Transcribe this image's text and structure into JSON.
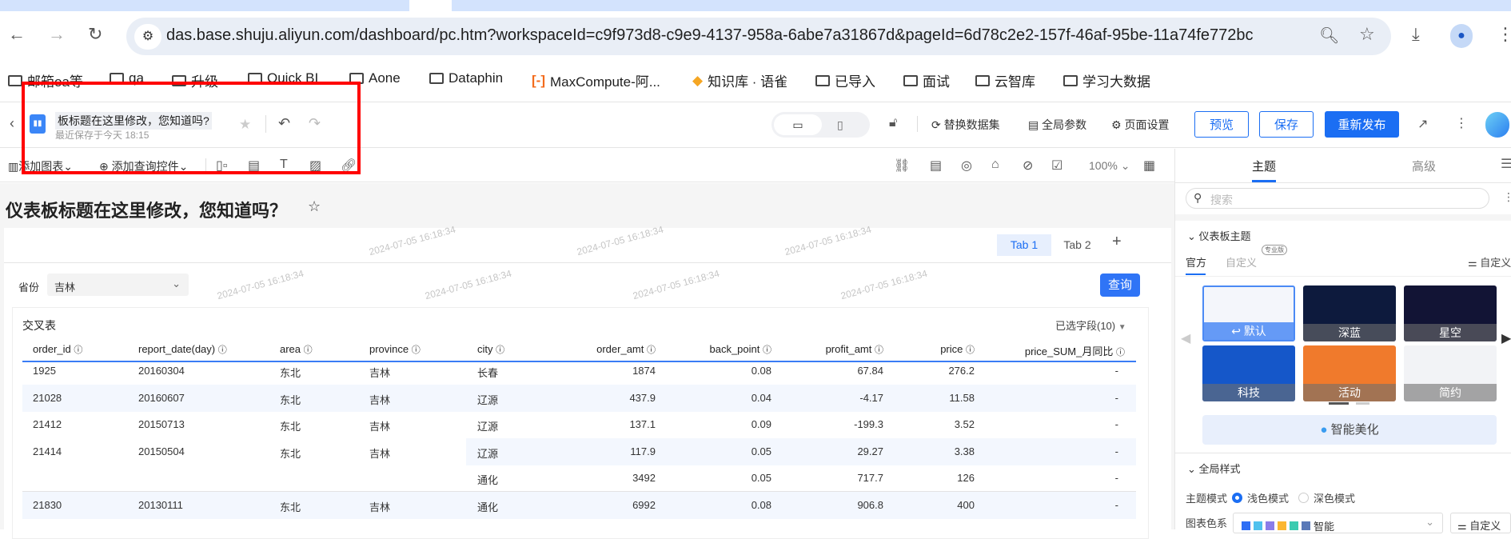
{
  "browser": {
    "url": "das.base.shuju.aliyun.com/dashboard/pc.htm?workspaceId=c9f973d8-c9e9-4137-958a-6abe7a31867d&pageId=6d78c2e2-157f-46af-95be-11a74fe772bc",
    "bookmarks": [
      "邮箱oa等",
      "qa",
      "升级",
      "Quick BI",
      "Aone",
      "Dataphin",
      "MaxCompute-阿...",
      "知识库 · 语雀",
      "已导入",
      "面试",
      "云智库",
      "学习大数据"
    ]
  },
  "header": {
    "title": "仪表板标题在这里修改，您知道吗?",
    "title_visible": "板标题在这里修改，您知道吗?",
    "saved": "最近保存于今天 18:15",
    "actions": [
      "替换数据集",
      "全局参数",
      "页面设置"
    ],
    "preview": "预览",
    "save": "保存",
    "publish": "重新发布"
  },
  "toolbar": {
    "add_chart": "添加图表",
    "add_query": "添加查询控件",
    "zoom": "100%"
  },
  "page": {
    "title": "仪表板标题在这里修改，您知道吗？",
    "tabs": [
      "Tab 1",
      "Tab 2"
    ],
    "add_tab": "+",
    "active_tab": 0,
    "filter": {
      "label": "省份",
      "value": "吉林",
      "query": "查询"
    },
    "watermark": "2024-07-05 16:18:34"
  },
  "table": {
    "title": "交叉表",
    "selected_fields": "已选字段(10)",
    "columns": [
      "order_id",
      "report_date(day)",
      "area",
      "province",
      "city",
      "order_amt",
      "back_point",
      "profit_amt",
      "price",
      "price_SUM_月同比"
    ],
    "rows": [
      [
        "1925",
        "20160304",
        "东北",
        "吉林",
        "长春",
        "1874",
        "0.08",
        "67.84",
        "276.2",
        "-"
      ],
      [
        "21028",
        "20160607",
        "东北",
        "吉林",
        "辽源",
        "437.9",
        "0.04",
        "-4.17",
        "11.58",
        "-"
      ],
      [
        "21412",
        "20150713",
        "东北",
        "吉林",
        "辽源",
        "137.1",
        "0.09",
        "-199.3",
        "3.52",
        "-"
      ],
      [
        "21414",
        "20150504",
        "东北",
        "吉林",
        "辽源",
        "117.9",
        "0.05",
        "29.27",
        "3.38",
        "-"
      ],
      [
        "",
        "",
        "",
        "",
        "通化",
        "3492",
        "0.05",
        "717.7",
        "126",
        "-"
      ],
      [
        "21830",
        "20130111",
        "东北",
        "吉林",
        "通化",
        "6992",
        "0.08",
        "906.8",
        "400",
        "-"
      ]
    ]
  },
  "panel": {
    "tabs": [
      "主题",
      "高级"
    ],
    "search_placeholder": "搜索",
    "section_theme": "仪表板主题",
    "theme_tabs": [
      "官方",
      "自定义"
    ],
    "pro_badge": "专业版",
    "custom": "自定义",
    "themes": [
      {
        "name": "默认",
        "color": "#f4f6fb"
      },
      {
        "name": "深蓝",
        "color": "#0d1a3d"
      },
      {
        "name": "星空",
        "color": "#121435"
      },
      {
        "name": "科技",
        "color": "#1557c9"
      },
      {
        "name": "活动",
        "color": "#f07a2c"
      },
      {
        "name": "简约",
        "color": "#f2f3f6"
      }
    ],
    "beautify": "智能美化",
    "section_global": "全局样式",
    "mode_label": "主题模式",
    "mode_light": "浅色模式",
    "mode_dark": "深色模式",
    "palette_label": "图表色系",
    "palette_name": "智能",
    "palette_colors": [
      "#2e6ef5",
      "#4fc1ee",
      "#8b7de8",
      "#fbb731",
      "#3ccbb0",
      "#5a79b8"
    ],
    "palette_custom": "自定义"
  },
  "colors": {
    "accent": "#1b6ef3",
    "highlight": "#ff0000"
  }
}
